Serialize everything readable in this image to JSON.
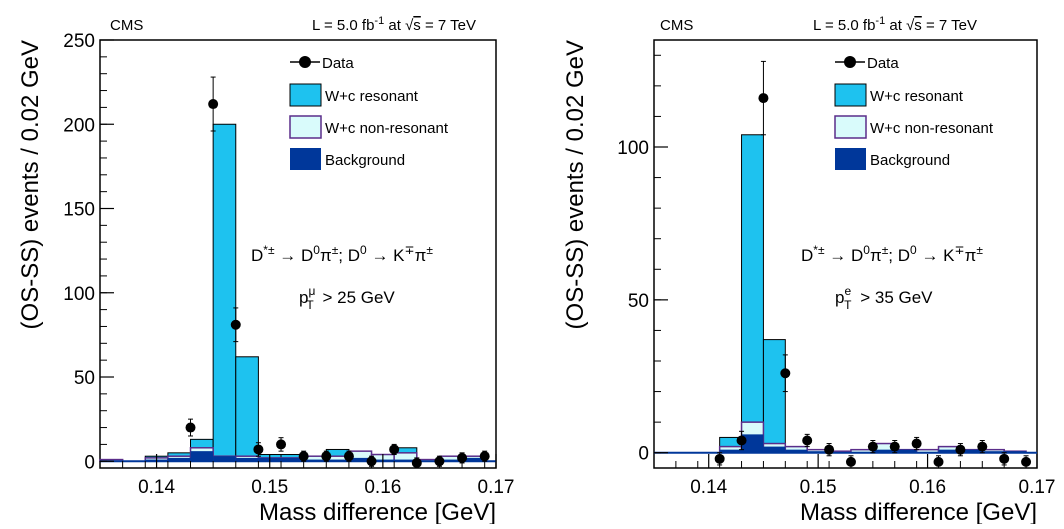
{
  "colors": {
    "resonant": "#1ec2ef",
    "nonresonant": "#d9fbfb",
    "background": "#00379a",
    "data": "#000000"
  },
  "chart_data": [
    {
      "type": "bar",
      "panel": "muon",
      "experiment_label": "CMS",
      "lumi_label": "L = 5.0 fb-1 at √s = 7 TeV",
      "lumi_parts": {
        "pre": "L = 5.0 fb",
        "sup": "-1",
        "mid": " at ",
        "sqrt_arg": "s",
        "post": " = 7 TeV"
      },
      "xlabel": "Mass difference [GeV]",
      "ylabel": "(OS-SS) events / 0.02 GeV",
      "xlim": [
        0.135,
        0.17
      ],
      "ylim": [
        -4,
        250
      ],
      "xticks": [
        0.14,
        0.15,
        0.16,
        0.17
      ],
      "xtick_labels": [
        "0.14",
        "0.15",
        "0.16",
        "0.17"
      ],
      "yticks": [
        0,
        50,
        100,
        150,
        200,
        250
      ],
      "ytick_labels": [
        "0",
        "50",
        "100",
        "150",
        "200",
        "250"
      ],
      "legend": {
        "placement": "top-right",
        "entries": [
          "Data",
          "W+c resonant",
          "W+c non-resonant",
          "Background"
        ]
      },
      "annotation_decay": "D*± → D0π±; D0 → K∓π±",
      "annotation_cut": "pTμ > 25 GeV",
      "cut_parts": {
        "p": "p",
        "sup": "μ",
        "sub": "T",
        "rest": " > 25 GeV"
      },
      "bin_edges": [
        0.135,
        0.137,
        0.139,
        0.141,
        0.143,
        0.145,
        0.147,
        0.149,
        0.151,
        0.153,
        0.155,
        0.157,
        0.159,
        0.161,
        0.163,
        0.165,
        0.167,
        0.169
      ],
      "background": [
        0,
        0,
        1,
        2,
        6,
        3,
        2,
        2,
        2,
        1,
        1,
        2,
        1,
        1,
        0,
        1,
        2
      ],
      "nonresonant": [
        1,
        0,
        2,
        3,
        8,
        3,
        3,
        2,
        2,
        3,
        3,
        6,
        4,
        5,
        1,
        3,
        3
      ],
      "total": [
        1,
        0,
        3,
        5,
        13,
        200,
        62,
        4,
        4,
        3,
        7,
        6,
        4,
        8,
        1,
        3,
        3
      ],
      "data_x": [
        0.143,
        0.145,
        0.147,
        0.149,
        0.151,
        0.153,
        0.155,
        0.157,
        0.159,
        0.161,
        0.163,
        0.165,
        0.167,
        0.169
      ],
      "data_y": [
        20,
        212,
        81,
        7,
        10,
        3,
        3,
        3,
        0,
        7,
        -1,
        0,
        2,
        3
      ],
      "data_err": [
        5,
        16,
        10,
        4,
        4,
        3,
        3,
        3,
        3,
        3,
        3,
        3,
        3,
        3
      ]
    },
    {
      "type": "bar",
      "panel": "electron",
      "experiment_label": "CMS",
      "lumi_label": "L = 5.0 fb-1 at √s = 7 TeV",
      "lumi_parts": {
        "pre": "L = 5.0 fb",
        "sup": "-1",
        "mid": " at ",
        "sqrt_arg": "s",
        "post": " = 7 TeV"
      },
      "xlabel": "Mass difference [GeV]",
      "ylabel": "(OS-SS) events / 0.02 GeV",
      "xlim": [
        0.135,
        0.17
      ],
      "ylim": [
        -5,
        135
      ],
      "xticks": [
        0.14,
        0.15,
        0.16,
        0.17
      ],
      "xtick_labels": [
        "0.14",
        "0.15",
        "0.16",
        "0.17"
      ],
      "yticks": [
        0,
        50,
        100
      ],
      "ytick_labels": [
        "0",
        "50",
        "100"
      ],
      "legend": {
        "placement": "top-right",
        "entries": [
          "Data",
          "W+c resonant",
          "W+c non-resonant",
          "Background"
        ]
      },
      "annotation_decay": "D*± → D0π±; D0 → K∓π±",
      "annotation_cut": "pTe > 35 GeV",
      "cut_parts": {
        "p": "p",
        "sup": "e",
        "sub": "T",
        "rest": " > 35 GeV"
      },
      "bin_edges": [
        0.135,
        0.137,
        0.139,
        0.141,
        0.143,
        0.145,
        0.147,
        0.149,
        0.151,
        0.153,
        0.155,
        0.157,
        0.159,
        0.161,
        0.163,
        0.165,
        0.167,
        0.169
      ],
      "background": [
        0,
        0,
        0,
        1,
        6,
        2,
        1,
        0.5,
        0,
        0,
        1,
        1,
        0,
        1,
        1,
        0.5,
        0.5
      ],
      "nonresonant": [
        0,
        0,
        0,
        2,
        10,
        3,
        2,
        1,
        0.5,
        1,
        3,
        1,
        1,
        2,
        1,
        1,
        0.5
      ],
      "total": [
        0,
        0,
        0,
        5,
        104,
        37,
        2,
        1,
        0.5,
        1,
        3,
        1,
        1,
        2,
        1,
        1,
        0.5
      ],
      "data_x": [
        0.141,
        0.143,
        0.145,
        0.147,
        0.149,
        0.151,
        0.153,
        0.155,
        0.157,
        0.159,
        0.161,
        0.163,
        0.165,
        0.167,
        0.169
      ],
      "data_y": [
        -2,
        4,
        116,
        26,
        4,
        1,
        -3,
        2,
        2,
        3,
        -3,
        1,
        2,
        -2,
        -3
      ],
      "data_err": [
        2,
        3,
        12,
        6,
        2,
        2,
        2,
        2,
        2,
        2,
        2,
        2,
        2,
        2,
        2
      ]
    }
  ]
}
